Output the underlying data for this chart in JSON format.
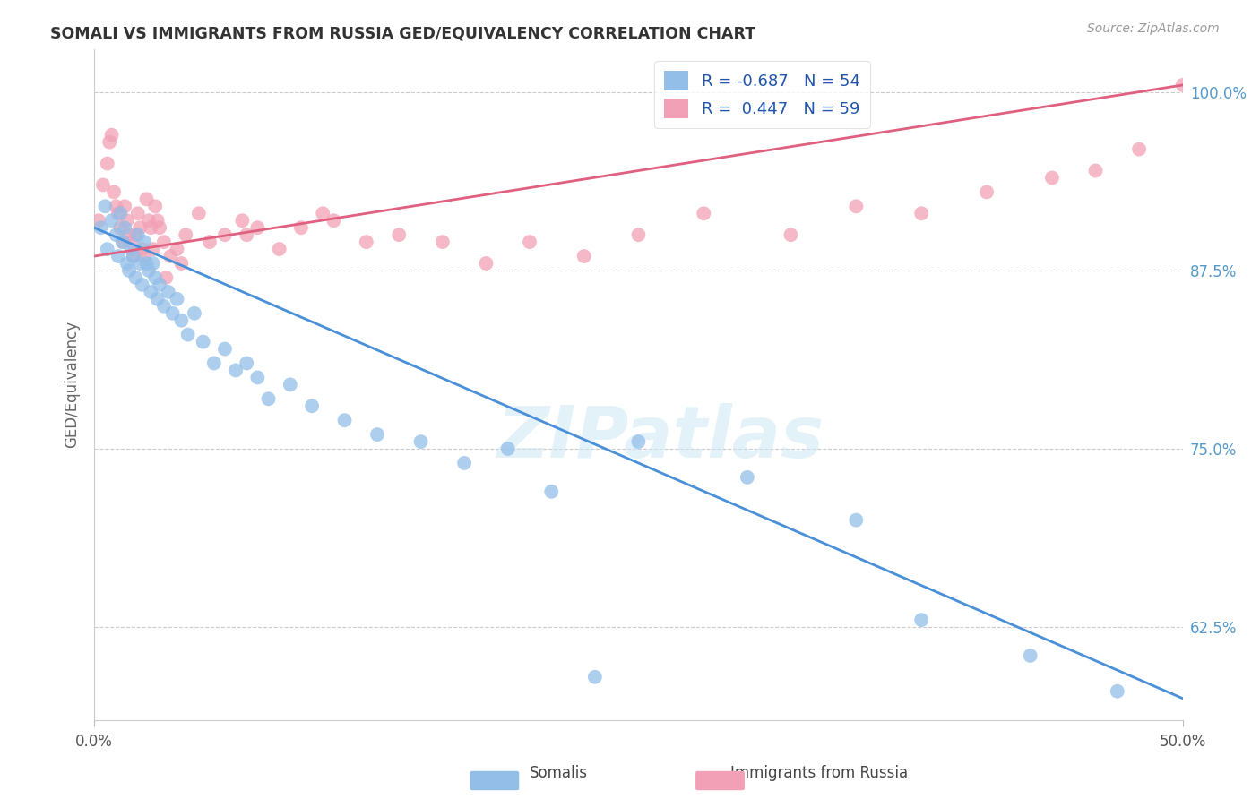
{
  "title": "SOMALI VS IMMIGRANTS FROM RUSSIA GED/EQUIVALENCY CORRELATION CHART",
  "source": "Source: ZipAtlas.com",
  "ylabel": "GED/Equivalency",
  "xlim": [
    0.0,
    50.0
  ],
  "ylim": [
    56.0,
    103.0
  ],
  "yticks": [
    62.5,
    75.0,
    87.5,
    100.0
  ],
  "ytick_labels": [
    "62.5%",
    "75.0%",
    "87.5%",
    "100.0%"
  ],
  "legend_r_somali": "-0.687",
  "legend_n_somali": "54",
  "legend_r_russia": "0.447",
  "legend_n_russia": "59",
  "somali_color": "#92BEE8",
  "russia_color": "#F2A0B5",
  "somali_line_color": "#4A90D9",
  "russia_line_color": "#E06080",
  "background_color": "#ffffff",
  "somali_label": "Somalis",
  "russia_label": "Immigrants from Russia",
  "somali_line_x0": 0.0,
  "somali_line_y0": 90.5,
  "somali_line_x1": 50.0,
  "somali_line_y1": 57.5,
  "russia_line_x0": 0.0,
  "russia_line_y0": 88.5,
  "russia_line_x1": 50.0,
  "russia_line_y1": 100.5,
  "somali_x": [
    0.3,
    0.5,
    0.6,
    0.8,
    1.0,
    1.1,
    1.2,
    1.3,
    1.4,
    1.5,
    1.6,
    1.7,
    1.8,
    1.9,
    2.0,
    2.1,
    2.2,
    2.3,
    2.4,
    2.5,
    2.6,
    2.7,
    2.8,
    2.9,
    3.0,
    3.2,
    3.4,
    3.6,
    3.8,
    4.0,
    4.3,
    4.6,
    5.0,
    5.5,
    6.0,
    6.5,
    7.0,
    7.5,
    8.0,
    9.0,
    10.0,
    11.5,
    13.0,
    15.0,
    17.0,
    19.0,
    21.0,
    25.0,
    30.0,
    35.0,
    38.0,
    43.0,
    47.0,
    23.0
  ],
  "somali_y": [
    90.5,
    92.0,
    89.0,
    91.0,
    90.0,
    88.5,
    91.5,
    89.5,
    90.5,
    88.0,
    87.5,
    89.0,
    88.5,
    87.0,
    90.0,
    88.0,
    86.5,
    89.5,
    88.0,
    87.5,
    86.0,
    88.0,
    87.0,
    85.5,
    86.5,
    85.0,
    86.0,
    84.5,
    85.5,
    84.0,
    83.0,
    84.5,
    82.5,
    81.0,
    82.0,
    80.5,
    81.0,
    80.0,
    78.5,
    79.5,
    78.0,
    77.0,
    76.0,
    75.5,
    74.0,
    75.0,
    72.0,
    75.5,
    73.0,
    70.0,
    63.0,
    60.5,
    58.0,
    59.0
  ],
  "russia_x": [
    0.2,
    0.4,
    0.6,
    0.7,
    0.8,
    0.9,
    1.0,
    1.1,
    1.2,
    1.3,
    1.4,
    1.5,
    1.6,
    1.7,
    1.8,
    1.9,
    2.0,
    2.1,
    2.2,
    2.3,
    2.4,
    2.5,
    2.6,
    2.7,
    2.8,
    2.9,
    3.0,
    3.2,
    3.5,
    3.8,
    4.2,
    4.8,
    5.3,
    6.0,
    6.8,
    7.5,
    8.5,
    9.5,
    11.0,
    12.5,
    14.0,
    16.0,
    18.0,
    20.0,
    22.5,
    25.0,
    28.0,
    32.0,
    35.0,
    38.0,
    41.0,
    44.0,
    46.0,
    48.0,
    50.0,
    3.3,
    4.0,
    7.0,
    10.5
  ],
  "russia_y": [
    91.0,
    93.5,
    95.0,
    96.5,
    97.0,
    93.0,
    92.0,
    91.5,
    90.5,
    89.5,
    92.0,
    91.0,
    90.0,
    89.5,
    88.5,
    90.0,
    91.5,
    90.5,
    89.0,
    88.5,
    92.5,
    91.0,
    90.5,
    89.0,
    92.0,
    91.0,
    90.5,
    89.5,
    88.5,
    89.0,
    90.0,
    91.5,
    89.5,
    90.0,
    91.0,
    90.5,
    89.0,
    90.5,
    91.0,
    89.5,
    90.0,
    89.5,
    88.0,
    89.5,
    88.5,
    90.0,
    91.5,
    90.0,
    92.0,
    91.5,
    93.0,
    94.0,
    94.5,
    96.0,
    100.5,
    87.0,
    88.0,
    90.0,
    91.5
  ]
}
